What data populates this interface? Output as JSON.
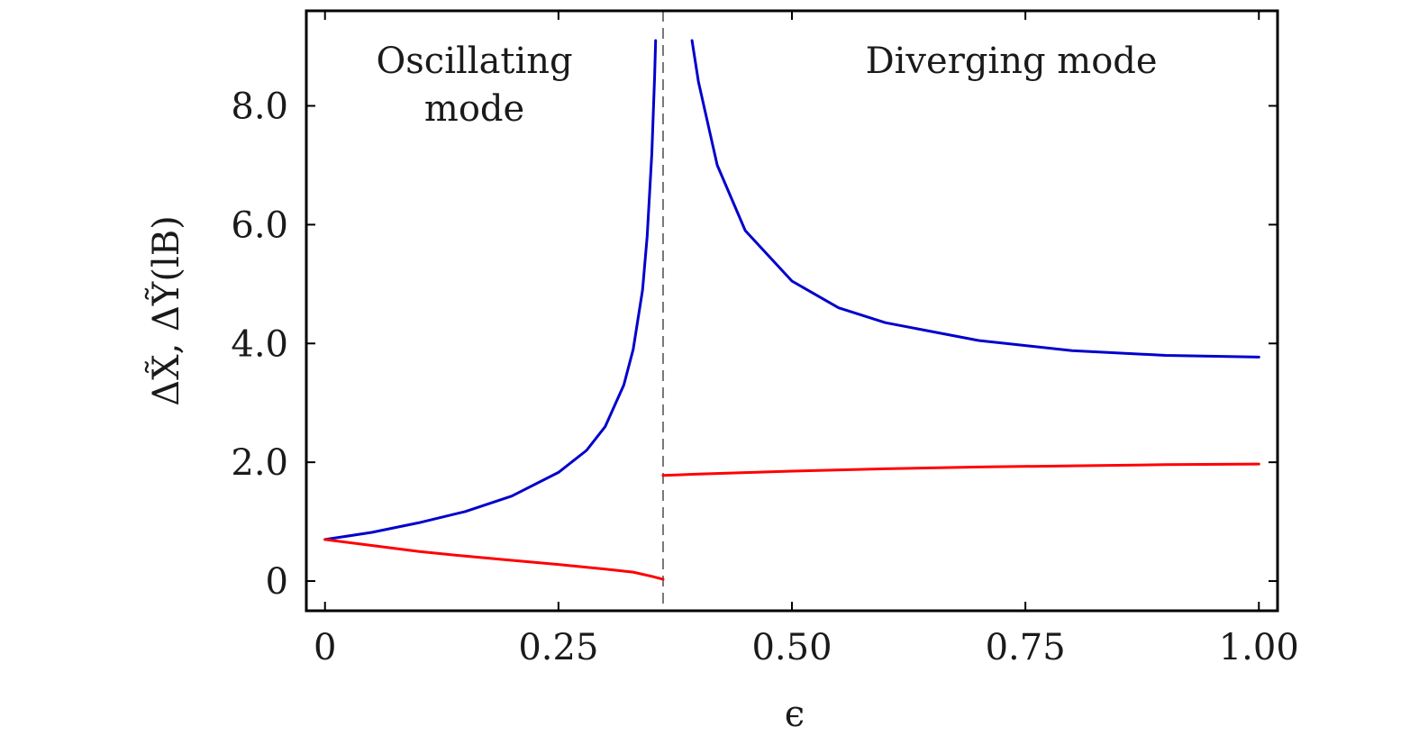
{
  "chart_data": {
    "type": "line",
    "title": "",
    "xlabel": "ϵ",
    "ylabel": "ΔX̃, ΔỸ(lB)",
    "xlim": [
      -0.02,
      1.02
    ],
    "ylim": [
      -0.5,
      9.6
    ],
    "xticks": [
      {
        "value": 0,
        "label": "0"
      },
      {
        "value": 0.25,
        "label": "0.25"
      },
      {
        "value": 0.5,
        "label": "0.50"
      },
      {
        "value": 0.75,
        "label": "0.75"
      },
      {
        "value": 1.0,
        "label": "1.00"
      }
    ],
    "yticks": [
      {
        "value": 0,
        "label": "0"
      },
      {
        "value": 2,
        "label": "2.0"
      },
      {
        "value": 4,
        "label": "4.0"
      },
      {
        "value": 6,
        "label": "6.0"
      },
      {
        "value": 8,
        "label": "8.0"
      }
    ],
    "grid": false,
    "legend": "none",
    "vline": {
      "x": 0.362,
      "style": "dashed",
      "color": "#777777"
    },
    "annotations": [
      {
        "text": "Oscillating",
        "x": 0.16,
        "y": 8.55
      },
      {
        "text": "mode",
        "x": 0.16,
        "y": 7.75
      },
      {
        "text": "Diverging mode",
        "x": 0.735,
        "y": 8.55
      }
    ],
    "series": [
      {
        "color": "#0000cc",
        "segments": [
          [
            [
              0,
              0.7
            ],
            [
              0.05,
              0.82
            ],
            [
              0.1,
              0.98
            ],
            [
              0.15,
              1.17
            ],
            [
              0.2,
              1.43
            ],
            [
              0.25,
              1.83
            ],
            [
              0.28,
              2.2
            ],
            [
              0.3,
              2.6
            ],
            [
              0.32,
              3.3
            ],
            [
              0.33,
              3.9
            ],
            [
              0.34,
              4.9
            ],
            [
              0.345,
              5.8
            ],
            [
              0.35,
              7.2
            ],
            [
              0.353,
              8.5
            ],
            [
              0.354,
              9.1
            ]
          ],
          [
            [
              0.393,
              9.1
            ],
            [
              0.4,
              8.4
            ],
            [
              0.42,
              7.0
            ],
            [
              0.45,
              5.9
            ],
            [
              0.5,
              5.05
            ],
            [
              0.55,
              4.6
            ],
            [
              0.6,
              4.35
            ],
            [
              0.7,
              4.05
            ],
            [
              0.8,
              3.88
            ],
            [
              0.9,
              3.8
            ],
            [
              1.0,
              3.77
            ]
          ]
        ]
      },
      {
        "color": "#ff0000",
        "segments": [
          [
            [
              0,
              0.7
            ],
            [
              0.05,
              0.6
            ],
            [
              0.1,
              0.5
            ],
            [
              0.15,
              0.42
            ],
            [
              0.2,
              0.35
            ],
            [
              0.25,
              0.28
            ],
            [
              0.3,
              0.2
            ],
            [
              0.33,
              0.15
            ],
            [
              0.35,
              0.08
            ],
            [
              0.362,
              0.03
            ]
          ],
          [
            [
              0.362,
              1.78
            ],
            [
              0.4,
              1.8
            ],
            [
              0.5,
              1.85
            ],
            [
              0.6,
              1.89
            ],
            [
              0.7,
              1.92
            ],
            [
              0.8,
              1.94
            ],
            [
              0.9,
              1.96
            ],
            [
              1.0,
              1.97
            ]
          ]
        ]
      }
    ]
  }
}
